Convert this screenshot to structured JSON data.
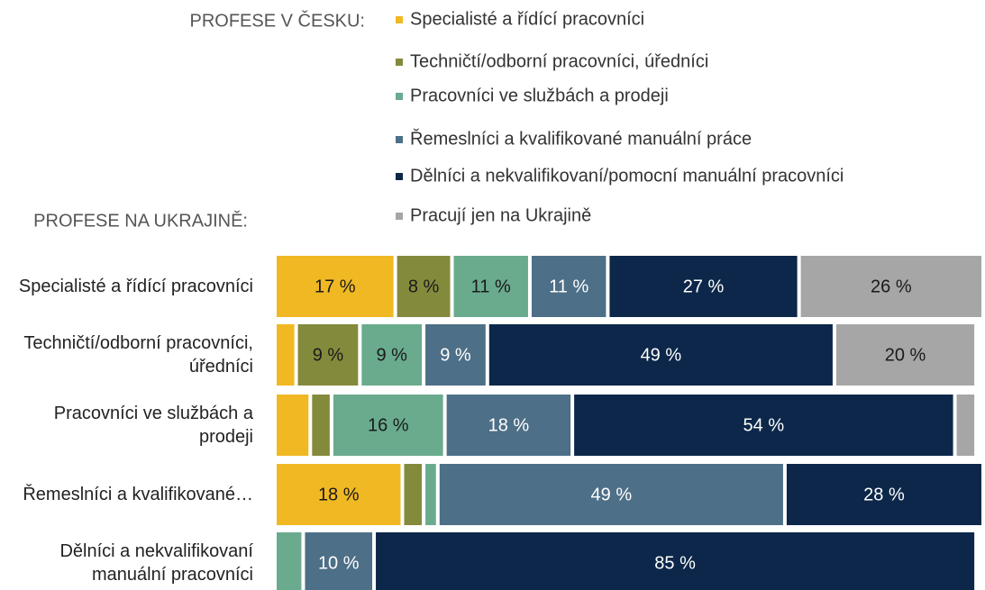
{
  "chart_data": {
    "type": "stacked-bar-horizontal",
    "legend_title": "PROFESE V ČESKU:",
    "y_label": "PROFESE NA UKRAJINĚ:",
    "categories": [
      "Specialisté a řídící pracovníci",
      "Techničtí/odborní pracovníci, úředníci",
      "Pracovníci ve službách a prodeji",
      "Řemeslníci a kvalifikované…",
      "Dělníci a nekvalifikovaní manuální pracovníci"
    ],
    "xlim": [
      0,
      100
    ],
    "series": [
      {
        "name": "Specialisté a řídící pracovníci",
        "color": "#f0b823",
        "values": [
          17,
          3,
          5,
          18,
          0
        ],
        "value_labels": [
          "17 %",
          null,
          null,
          "18 %",
          null
        ]
      },
      {
        "name": "Techničtí/odborní pracovníci, úředníci",
        "color": "#848a3c",
        "values": [
          8,
          9,
          3,
          3,
          0
        ],
        "value_labels": [
          "8 %",
          "9 %",
          null,
          null,
          null
        ]
      },
      {
        "name": "Pracovníci ve službách a prodeji",
        "color": "#6aab8e",
        "values": [
          11,
          9,
          16,
          2,
          4
        ],
        "value_labels": [
          "11 %",
          "9 %",
          "16 %",
          null,
          null
        ]
      },
      {
        "name": "Řemeslníci a kvalifikované manuální práce",
        "color": "#4d6f87",
        "values": [
          11,
          9,
          18,
          49,
          10
        ],
        "value_labels": [
          "11 %",
          "9 %",
          "18 %",
          "49 %",
          "10 %"
        ]
      },
      {
        "name": "Dělníci a nekvalifikovaní/pomocní manuální pracovníci",
        "color": "#0c2749",
        "values": [
          27,
          49,
          54,
          28,
          85
        ],
        "value_labels": [
          "27 %",
          "49 %",
          "54 %",
          "28 %",
          "85 %"
        ]
      },
      {
        "name": "Pracují jen na Ukrajině",
        "color": "#a6a6a6",
        "values": [
          26,
          20,
          3,
          0,
          0
        ],
        "value_labels": [
          "26 %",
          "20 %",
          null,
          null,
          null
        ]
      }
    ]
  }
}
